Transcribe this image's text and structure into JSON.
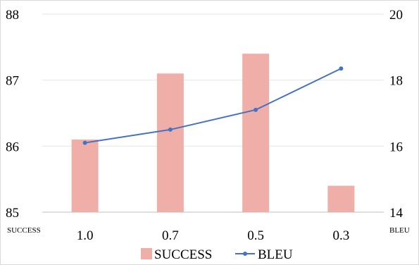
{
  "chart_data": {
    "type": "bar+line",
    "categories": [
      "1.0",
      "0.7",
      "0.5",
      "0.3"
    ],
    "series": [
      {
        "name": "SUCCESS",
        "type": "bar",
        "axis": "left",
        "values": [
          86.1,
          87.1,
          87.4,
          85.4
        ],
        "color": "#f0aea9"
      },
      {
        "name": "BLEU",
        "type": "line",
        "axis": "right",
        "values": [
          16.1,
          16.5,
          17.1,
          18.35
        ],
        "color": "#4472c4"
      }
    ],
    "y_left": {
      "label": "SUCCESS",
      "range": [
        85,
        88
      ],
      "ticks": [
        "85",
        "86",
        "87",
        "88"
      ]
    },
    "y_right": {
      "label": "BLEU",
      "range": [
        14,
        20
      ],
      "ticks": [
        "14",
        "16",
        "18",
        "20"
      ]
    },
    "grid": true,
    "legend": "bottom"
  }
}
